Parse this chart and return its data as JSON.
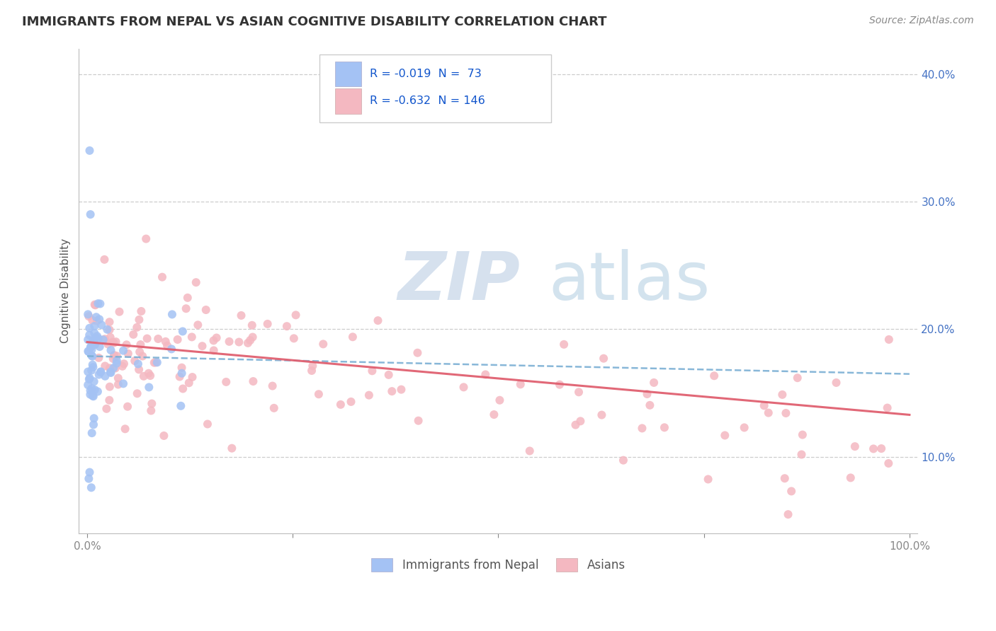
{
  "title": "IMMIGRANTS FROM NEPAL VS ASIAN COGNITIVE DISABILITY CORRELATION CHART",
  "source": "Source: ZipAtlas.com",
  "ylabel": "Cognitive Disability",
  "color_blue": "#a4c2f4",
  "color_pink": "#f4b8c1",
  "color_blue_line": "#7bafd4",
  "color_pink_line": "#e06070",
  "color_text_blue": "#1155cc",
  "color_dark_blue": "#3d6eb4",
  "background_color": "#ffffff",
  "grid_color": "#c8c8c8",
  "watermark_zip": "#c0cfe8",
  "watermark_atlas": "#a8c4e0",
  "legend_text_R1": "R = -0.019  N =  73",
  "legend_text_R2": "R = -0.632  N = 146"
}
